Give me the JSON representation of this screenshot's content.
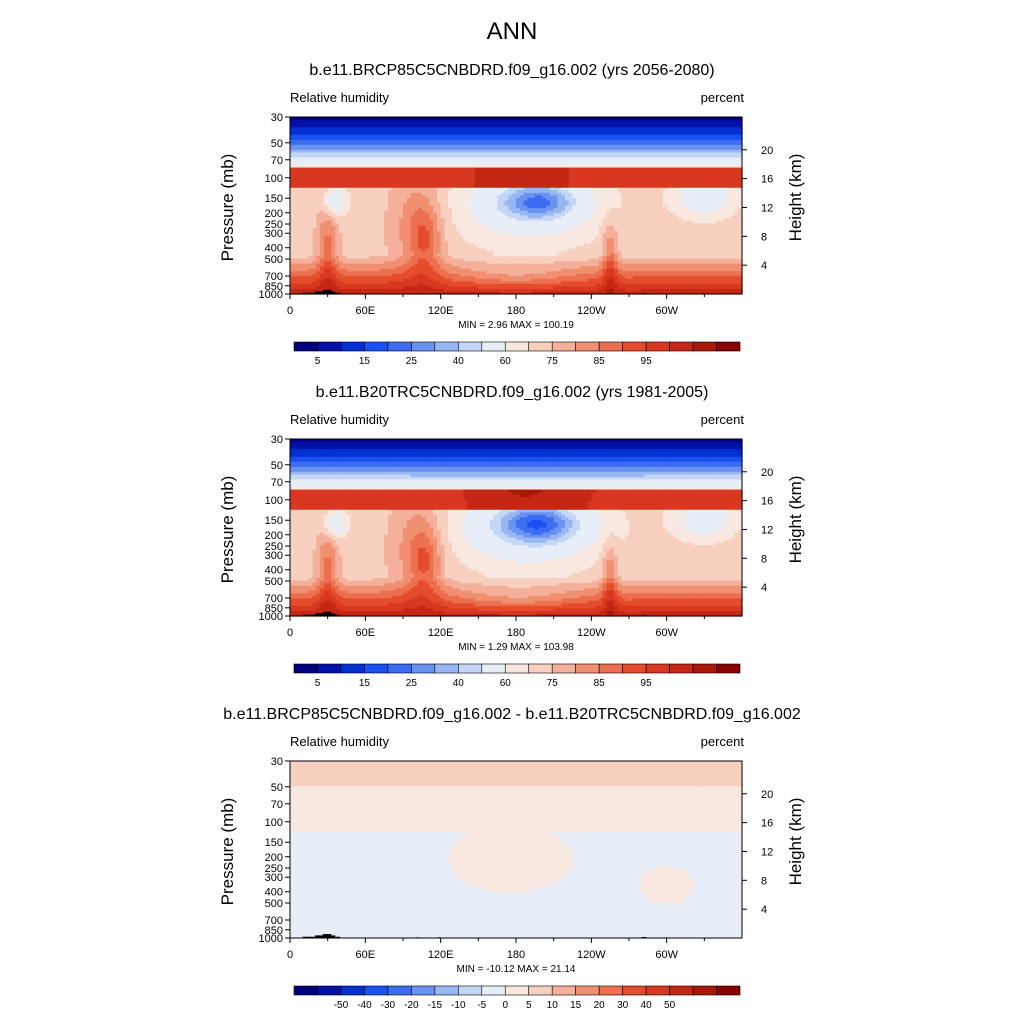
{
  "page_title": "ANN",
  "colors": {
    "seq_levels": [
      "#00007a",
      "#0010a8",
      "#0030d0",
      "#1a50f0",
      "#3c6cf0",
      "#6a92f0",
      "#98b6f2",
      "#c4d6f6",
      "#e8eef8",
      "#f8e8e0",
      "#f8d0c0",
      "#f4b09a",
      "#f09070",
      "#ec7050",
      "#e44c2c",
      "#d83820",
      "#c42814",
      "#a81808",
      "#880000"
    ],
    "diff_levels": [
      "#00007a",
      "#0010a8",
      "#0030d0",
      "#1a50f0",
      "#3c6cf0",
      "#6a92f0",
      "#98b6f2",
      "#c4d6f6",
      "#e8eef8",
      "#f8e8e0",
      "#f8d0c0",
      "#f4b09a",
      "#f09070",
      "#ec7050",
      "#e44c2c",
      "#d83820",
      "#c42814",
      "#a81808",
      "#880000"
    ],
    "topography": "#000000"
  },
  "chart_data": [
    {
      "type": "heatmap",
      "title": "b.e11.BRCP85C5CNBDRD.f09_g16.002 (yrs 2056-2080)",
      "variable_label": "Relative humidity",
      "unit_label": "percent",
      "ylabel": "Pressure (mb)",
      "ylabel_right": "Height (km)",
      "x_ticks": [
        "0",
        "60E",
        "120E",
        "180",
        "120W",
        "60W"
      ],
      "y_ticks": [
        "30",
        "50",
        "70",
        "100",
        "150",
        "200",
        "250",
        "300",
        "400",
        "500",
        "700",
        "850",
        "1000"
      ],
      "height_ticks": [
        "20",
        "16",
        "12",
        "8",
        "4"
      ],
      "stats": "MIN =   2.96  MAX = 100.19",
      "colorbar_labels": [
        "5",
        "15",
        "25",
        "40",
        "60",
        "75",
        "85",
        "95"
      ],
      "scale": "seq",
      "field": "future"
    },
    {
      "type": "heatmap",
      "title": "b.e11.B20TRC5CNBDRD.f09_g16.002 (yrs 1981-2005)",
      "variable_label": "Relative humidity",
      "unit_label": "percent",
      "ylabel": "Pressure (mb)",
      "ylabel_right": "Height (km)",
      "x_ticks": [
        "0",
        "60E",
        "120E",
        "180",
        "120W",
        "60W"
      ],
      "y_ticks": [
        "30",
        "50",
        "70",
        "100",
        "150",
        "200",
        "250",
        "300",
        "400",
        "500",
        "700",
        "850",
        "1000"
      ],
      "height_ticks": [
        "20",
        "16",
        "12",
        "8",
        "4"
      ],
      "stats": "MIN =   1.29  MAX = 103.98",
      "colorbar_labels": [
        "5",
        "15",
        "25",
        "40",
        "60",
        "75",
        "85",
        "95"
      ],
      "scale": "seq",
      "field": "hist"
    },
    {
      "type": "heatmap",
      "title": "b.e11.BRCP85C5CNBDRD.f09_g16.002 - b.e11.B20TRC5CNBDRD.f09_g16.002",
      "variable_label": "Relative humidity",
      "unit_label": "percent",
      "ylabel": "Pressure (mb)",
      "ylabel_right": "Height (km)",
      "x_ticks": [
        "0",
        "60E",
        "120E",
        "180",
        "120W",
        "60W"
      ],
      "y_ticks": [
        "30",
        "50",
        "70",
        "100",
        "150",
        "200",
        "250",
        "300",
        "400",
        "500",
        "700",
        "850",
        "1000"
      ],
      "height_ticks": [
        "20",
        "16",
        "12",
        "8",
        "4"
      ],
      "stats": "MIN = -10.12  MAX =  21.14",
      "colorbar_labels": [
        "-50",
        "-40",
        "-30",
        "-20",
        "-15",
        "-10",
        "-5",
        "0",
        "5",
        "10",
        "15",
        "20",
        "30",
        "40",
        "50"
      ],
      "scale": "diff",
      "field": "diff"
    }
  ]
}
